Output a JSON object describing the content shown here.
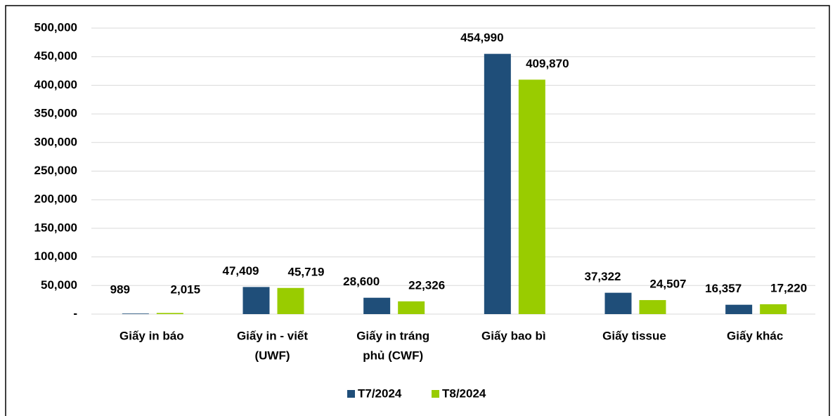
{
  "chart_data": {
    "type": "bar",
    "categories": [
      [
        "Giấy in báo"
      ],
      [
        "Giấy in - viết",
        "(UWF)"
      ],
      [
        "Giấy in tráng",
        "phủ (CWF)"
      ],
      [
        "Giấy bao bì"
      ],
      [
        "Giấy tissue"
      ],
      [
        "Giấy khác"
      ]
    ],
    "series": [
      {
        "name": "T7/2024",
        "color": "#1f4e79",
        "values": [
          989,
          47409,
          28600,
          454990,
          37322,
          16357
        ],
        "value_labels": [
          "989",
          "47,409",
          "28,600",
          "454,990",
          "37,322",
          "16,357"
        ]
      },
      {
        "name": "T8/2024",
        "color": "#99cc00",
        "values": [
          2015,
          45719,
          22326,
          409870,
          24507,
          17220
        ],
        "value_labels": [
          "2,015",
          "45,719",
          "22,326",
          "409,870",
          "24,507",
          "17,220"
        ]
      }
    ],
    "ylim": [
      0,
      500000
    ],
    "yticks": [
      {
        "value": 0,
        "label": "-"
      },
      {
        "value": 50000,
        "label": "50,000"
      },
      {
        "value": 100000,
        "label": "100,000"
      },
      {
        "value": 150000,
        "label": "150,000"
      },
      {
        "value": 200000,
        "label": "200,000"
      },
      {
        "value": 250000,
        "label": "250,000"
      },
      {
        "value": 300000,
        "label": "300,000"
      },
      {
        "value": 350000,
        "label": "350,000"
      },
      {
        "value": 400000,
        "label": "400,000"
      },
      {
        "value": 450000,
        "label": "450,000"
      },
      {
        "value": 500000,
        "label": "500,000"
      }
    ],
    "grid": true,
    "legend": "bottom"
  }
}
